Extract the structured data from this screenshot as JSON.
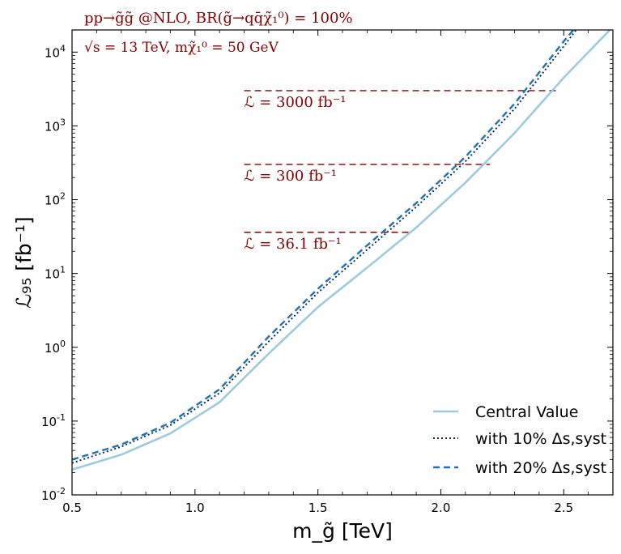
{
  "chart_data": {
    "type": "line",
    "title_line1": "pp→g̃g̃ @NLO, BR(g̃→qq̄χ̃₁⁰) = 100%",
    "title_line2": "√s = 13 TeV,  mχ̃₁⁰ = 50 GeV",
    "xlabel": "m_g̃ [TeV]",
    "ylabel": "ℒ₉₅ [fb⁻¹]",
    "xlim": [
      0.5,
      2.7
    ],
    "ylim_log10": [
      -2,
      4.3
    ],
    "x_ticks": [
      {
        "value": 0.5,
        "label": "0.5"
      },
      {
        "value": 1.0,
        "label": "1.0"
      },
      {
        "value": 1.5,
        "label": "1.5"
      },
      {
        "value": 2.0,
        "label": "2.0"
      },
      {
        "value": 2.5,
        "label": "2.5"
      }
    ],
    "y_ticks": [
      {
        "exp": -2,
        "base": "10",
        "sup": "-2"
      },
      {
        "exp": -1,
        "base": "10",
        "sup": "-1"
      },
      {
        "exp": 0,
        "base": "10",
        "sup": "0"
      },
      {
        "exp": 1,
        "base": "10",
        "sup": "1"
      },
      {
        "exp": 2,
        "base": "10",
        "sup": "2"
      },
      {
        "exp": 3,
        "base": "10",
        "sup": "3"
      },
      {
        "exp": 4,
        "base": "10",
        "sup": "4"
      }
    ],
    "series": [
      {
        "name": "Central Value",
        "style": "solid",
        "color": "#9ecae1",
        "x": [
          0.5,
          0.7,
          0.9,
          1.1,
          1.3,
          1.5,
          1.7,
          1.9,
          2.1,
          2.3,
          2.5,
          2.7
        ],
        "y": [
          0.022,
          0.035,
          0.068,
          0.18,
          0.82,
          3.5,
          12,
          42,
          170,
          800,
          4500,
          22000
        ]
      },
      {
        "name": "with 10% Δs,syst",
        "style": "dotted",
        "color": "#08306b",
        "x": [
          0.5,
          0.7,
          0.9,
          1.1,
          1.3,
          1.5,
          1.7,
          1.9,
          2.1,
          2.3,
          2.5,
          2.56
        ],
        "y": [
          0.027,
          0.045,
          0.088,
          0.24,
          1.2,
          5.5,
          21,
          80,
          330,
          1700,
          12000,
          22000
        ]
      },
      {
        "name": "with 20% Δs,syst",
        "style": "dashed",
        "color": "#2171b5",
        "x": [
          0.5,
          0.7,
          0.9,
          1.1,
          1.3,
          1.5,
          1.7,
          1.9,
          2.1,
          2.3,
          2.5,
          2.55
        ],
        "y": [
          0.03,
          0.048,
          0.095,
          0.27,
          1.4,
          6.2,
          24,
          90,
          380,
          2000,
          14000,
          22000
        ]
      }
    ],
    "reference_lines": [
      {
        "y": 3000,
        "x_start": 1.2,
        "x_end": 2.47,
        "label": "ℒ = 3000 fb⁻¹"
      },
      {
        "y": 300,
        "x_start": 1.2,
        "x_end": 2.2,
        "label": "ℒ = 300 fb⁻¹"
      },
      {
        "y": 36.1,
        "x_start": 1.2,
        "x_end": 1.88,
        "label": "ℒ = 36.1 fb⁻¹"
      }
    ],
    "reference_color": "#8b0000",
    "legend_position": "lower-right"
  }
}
